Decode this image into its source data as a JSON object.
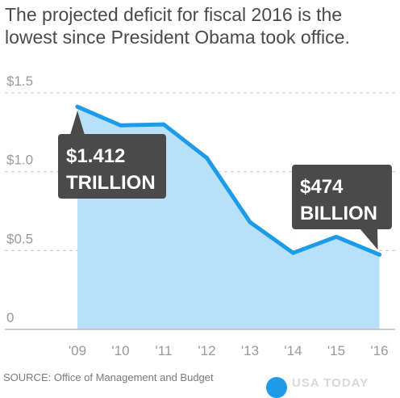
{
  "headline": "The projected deficit for fiscal 2016 is the lowest since President Obama took office.",
  "source": "SOURCE: Office of Management and Budget",
  "logo": "USA TODAY",
  "colors": {
    "line": "#1e9be8",
    "area": "#b9e0f9",
    "callout_bg": "#4a4a4a",
    "grid": "#c9c9c9",
    "text": "#4a4a4a",
    "tick": "#9a9a9a"
  },
  "chart_data": {
    "type": "area",
    "categories": [
      "'09",
      "'10",
      "'11",
      "'12",
      "'13",
      "'14",
      "'15",
      "'16"
    ],
    "values": [
      1.412,
      1.294,
      1.3,
      1.087,
      0.68,
      0.485,
      0.587,
      0.474
    ],
    "yticks": [
      "$1.5",
      "$1.0",
      "$0.5",
      "0"
    ],
    "ylim": [
      0,
      1.5
    ],
    "grid": true,
    "annotations": [
      {
        "line1": "$1.412",
        "line2": "TRILLION"
      },
      {
        "line1": "$474",
        "line2": "BILLION"
      }
    ]
  }
}
